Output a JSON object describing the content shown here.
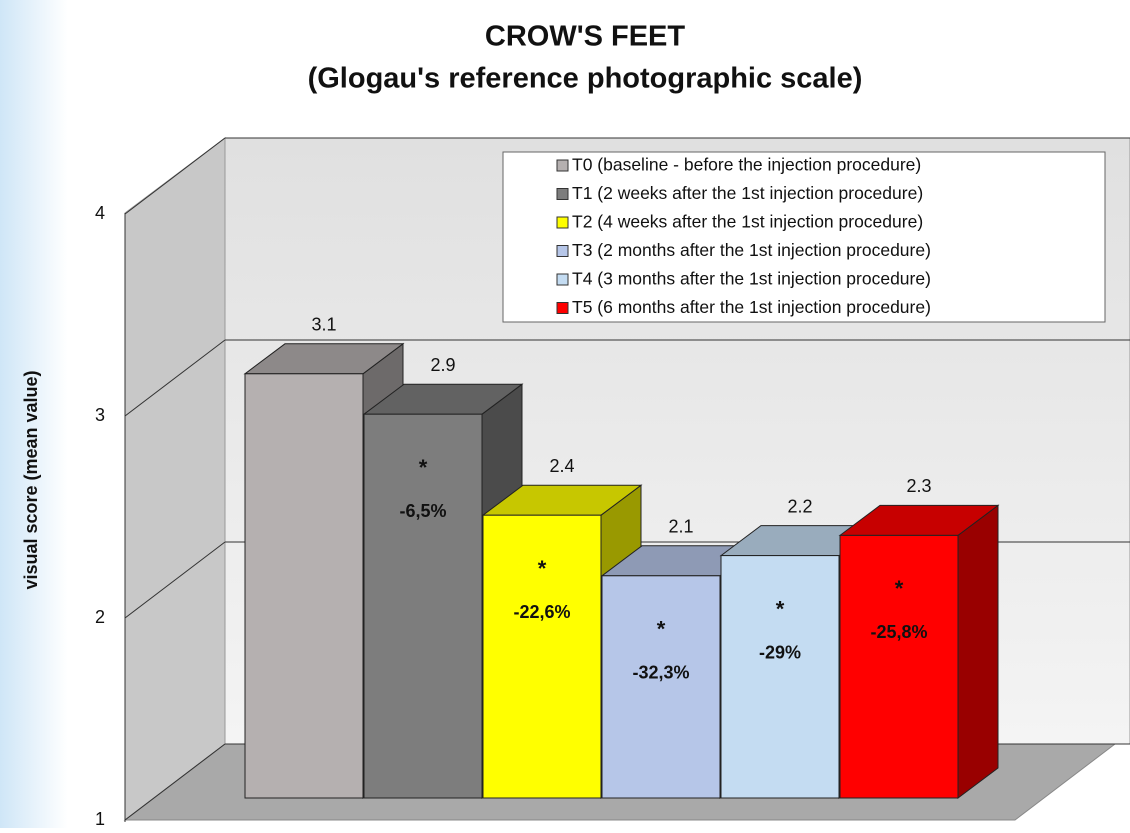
{
  "chart_data": {
    "type": "bar3d",
    "title": "CROW'S FEET",
    "subtitle": "(Glogau's reference photographic scale)",
    "y_label": "visual score (mean value)",
    "ylim": [
      1,
      4
    ],
    "yticks": [
      1,
      2,
      3,
      4
    ],
    "grid": true,
    "legend": "top-right",
    "series": [
      {
        "name": "T0 (baseline - before the injection procedure)",
        "color": "#b5b0b0",
        "values": [
          3.1
        ]
      },
      {
        "name": "T1 (2 weeks after the 1st injection procedure)",
        "color": "#7d7d7d",
        "values": [
          2.9
        ],
        "significance": "*",
        "change": "-6,5%"
      },
      {
        "name": "T2 (4 weeks after the 1st injection procedure)",
        "color": "#ffff00",
        "values": [
          2.4
        ],
        "significance": "*",
        "change": "-22,6%"
      },
      {
        "name": "T3 (2 months after the 1st injection procedure)",
        "color": "#b6c6e8",
        "values": [
          2.1
        ],
        "significance": "*",
        "change": "-32,3%"
      },
      {
        "name": "T4 (3 months after the 1st injection procedure)",
        "color": "#c4dcf2",
        "values": [
          2.2
        ],
        "significance": "*",
        "change": "-29%"
      },
      {
        "name": "T5 (6 months after the 1st injection procedure)",
        "color": "#ff0000",
        "values": [
          2.3
        ],
        "significance": "*",
        "change": "-25,8%"
      }
    ]
  }
}
